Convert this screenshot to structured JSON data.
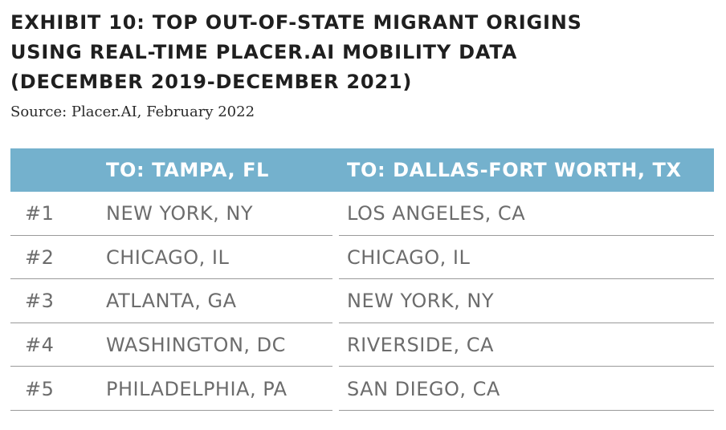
{
  "exhibit": {
    "title_lines": [
      "EXHIBIT 10: TOP OUT-OF-STATE MIGRANT ORIGINS",
      "USING REAL-TIME PLACER.AI MOBILITY DATA",
      "(DECEMBER 2019-DECEMBER 2021)"
    ],
    "source": "Source: Placer.AI, February 2022"
  },
  "table": {
    "columns": [
      "",
      "TO: TAMPA, FL",
      "TO: DALLAS-FORT WORTH, TX"
    ],
    "rows": [
      {
        "rank": "#1",
        "tampa": "NEW YORK, NY",
        "dallas": "LOS ANGELES, CA"
      },
      {
        "rank": "#2",
        "tampa": "CHICAGO, IL",
        "dallas": "CHICAGO, IL"
      },
      {
        "rank": "#3",
        "tampa": "ATLANTA, GA",
        "dallas": "NEW YORK, NY"
      },
      {
        "rank": "#4",
        "tampa": "WASHINGTON, DC",
        "dallas": "RIVERSIDE, CA"
      },
      {
        "rank": "#5",
        "tampa": "PHILADELPHIA, PA",
        "dallas": "SAN DIEGO, CA"
      }
    ]
  },
  "colors": {
    "header_background": "#74b1cd",
    "header_text": "#ffffff",
    "body_text": "#6c6c6c",
    "title_text": "#1f1f1f",
    "rule": "#9a9a9a"
  }
}
